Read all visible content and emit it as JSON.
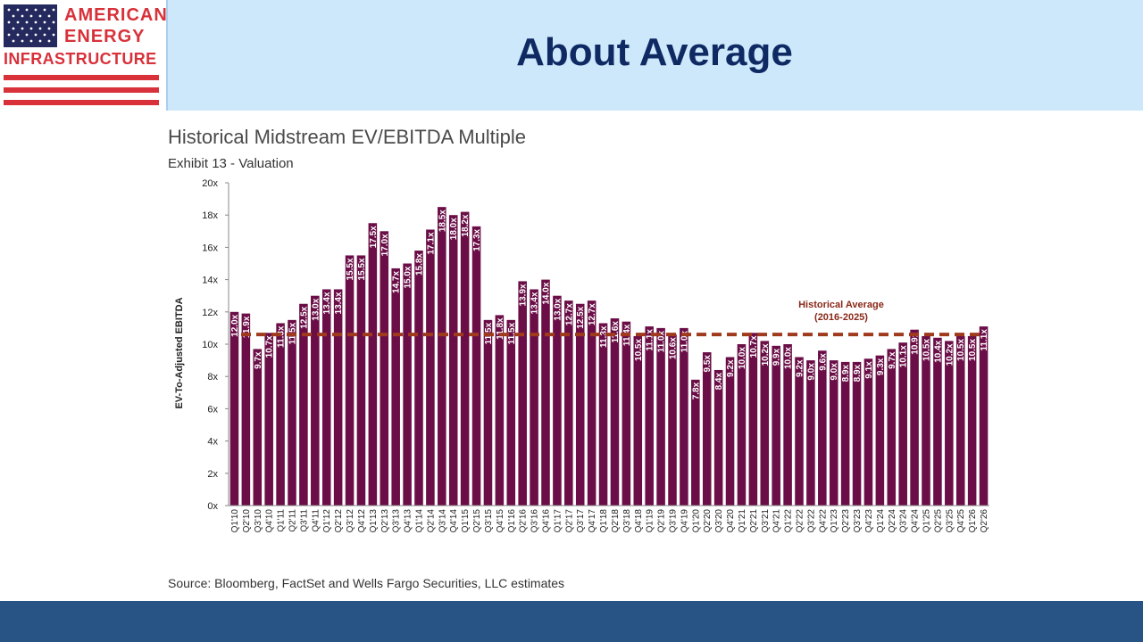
{
  "slide": {
    "title": "About Average"
  },
  "logo": {
    "line1": "AMERICAN",
    "line2": "ENERGY",
    "line3": "INFRASTRUCTURE"
  },
  "colors": {
    "bar": "#6b0e47",
    "average_line": "#a03a1c",
    "title": "#0f2a63",
    "header_band": "#cde8fb",
    "footer_band": "#285485",
    "logo_red": "#d8313a",
    "logo_navy": "#24295e"
  },
  "chart": {
    "title": "Historical Midstream EV/EBITDA Multiple",
    "subtitle": "Exhibit 13 - Valuation",
    "source": "Source: Bloomberg, FactSet and Wells Fargo Securities, LLC estimates"
  },
  "chart_data": {
    "type": "bar",
    "title": "Historical Midstream EV/EBITDA Multiple",
    "subtitle": "Exhibit 13 - Valuation",
    "xlabel": "",
    "ylabel": "EV-To-Adjusted EBITDA",
    "ylim": [
      0,
      20
    ],
    "yticks": [
      0,
      2,
      4,
      6,
      8,
      10,
      12,
      14,
      16,
      18,
      20
    ],
    "ytick_labels": [
      "0x",
      "2x",
      "4x",
      "6x",
      "8x",
      "10x",
      "12x",
      "14x",
      "16x",
      "18x",
      "20x"
    ],
    "grid": false,
    "categories": [
      "Q1'10",
      "Q2'10",
      "Q3'10",
      "Q4'10",
      "Q1'11",
      "Q2'11",
      "Q3'11",
      "Q4'11",
      "Q1'12",
      "Q2'12",
      "Q3'12",
      "Q4'12",
      "Q1'13",
      "Q2'13",
      "Q3'13",
      "Q4'13",
      "Q1'14",
      "Q2'14",
      "Q3'14",
      "Q4'14",
      "Q1'15",
      "Q2'15",
      "Q3'15",
      "Q4'15",
      "Q1'16",
      "Q2'16",
      "Q3'16",
      "Q4'16",
      "Q1'17",
      "Q2'17",
      "Q3'17",
      "Q4'17",
      "Q1'18",
      "Q2'18",
      "Q3'18",
      "Q4'18",
      "Q1'19",
      "Q2'19",
      "Q3'19",
      "Q4'19",
      "Q1'20",
      "Q2'20",
      "Q3'20",
      "Q4'20",
      "Q1'21",
      "Q2'21",
      "Q3'21",
      "Q4'21",
      "Q1'22",
      "Q2'22",
      "Q3'22",
      "Q4'22",
      "Q1'23",
      "Q2'23",
      "Q3'23",
      "Q4'23",
      "Q1'24",
      "Q2'24",
      "Q3'24",
      "Q4'24",
      "Q1'25",
      "Q2'25",
      "Q3'25",
      "Q4'25",
      "Q1'26",
      "Q2'26"
    ],
    "values": [
      12.0,
      11.9,
      9.7,
      10.7,
      11.3,
      11.5,
      12.5,
      13.0,
      13.4,
      13.4,
      15.5,
      15.5,
      17.5,
      17.0,
      14.7,
      15.0,
      15.8,
      17.1,
      18.5,
      18.0,
      18.2,
      17.3,
      11.5,
      11.8,
      11.5,
      13.9,
      13.4,
      14.0,
      13.0,
      12.7,
      12.5,
      12.7,
      11.3,
      11.6,
      11.4,
      10.5,
      11.1,
      11.0,
      10.6,
      11.0,
      7.8,
      9.5,
      8.4,
      9.2,
      10.0,
      10.7,
      10.2,
      9.9,
      10.0,
      9.2,
      9.0,
      9.6,
      9.0,
      8.9,
      8.9,
      9.1,
      9.3,
      9.7,
      10.1,
      10.9,
      10.5,
      10.4,
      10.2,
      10.5,
      10.5,
      11.1
    ],
    "data_labels": [
      "12.0x",
      "11.9x",
      "9.7x",
      "10.7x",
      "11.3x",
      "11.5x",
      "12.5x",
      "13.0x",
      "13.4x",
      "13.4x",
      "15.5x",
      "15.5x",
      "17.5x",
      "17.0x",
      "14.7x",
      "15.0x",
      "15.8x",
      "17.1x",
      "18.5x",
      "18.0x",
      "18.2x",
      "17.3x",
      "11.5x",
      "11.8x",
      "11.5x",
      "13.9x",
      "13.4x",
      "14.0x",
      "13.0x",
      "12.7x",
      "12.5x",
      "12.7x",
      "11.3x",
      "11.6x",
      "11.4x",
      "10.5x",
      "11.1x",
      "11.0x",
      "10.6x",
      "11.0x",
      "7.8x",
      "9.5x",
      "8.4x",
      "9.2x",
      "10.0x",
      "10.7x",
      "10.2x",
      "9.9x",
      "10.0x",
      "9.2x",
      "9.0x",
      "9.6x",
      "9.0x",
      "8.9x",
      "8.9x",
      "9.1x",
      "9.3x",
      "9.7x",
      "10.1x",
      "10.9x",
      "10.5x",
      "10.4x",
      "10.2x",
      "10.5x",
      "10.5x",
      "11.1x"
    ],
    "reference_line": {
      "value": 10.6,
      "label_line1": "Historical Average",
      "label_line2": "(2016-2025)",
      "style": "dashed"
    }
  }
}
